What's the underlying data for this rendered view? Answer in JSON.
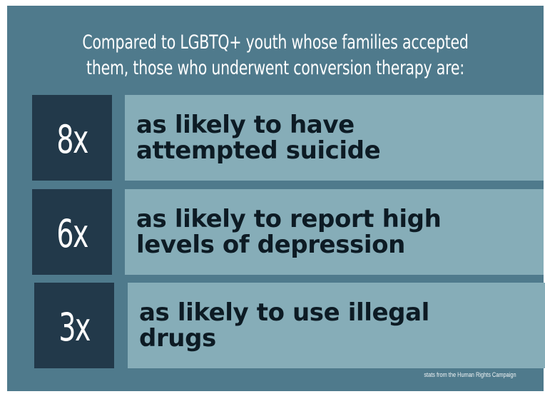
{
  "headline": {
    "line1": "Compared to LGBTQ+ youth whose families accepted",
    "line2": "them, those who underwent conversion therapy are:"
  },
  "stats": [
    {
      "multiplier": "8x",
      "text": "as likely to have\nattempted suicide"
    },
    {
      "multiplier": "6x",
      "text": "as likely to report high\nlevels of depression"
    },
    {
      "multiplier": "3x",
      "text": "as likely to use illegal\ndrugs"
    }
  ],
  "source": "stats from the Human Rights Campaign",
  "colors": {
    "background": "#4f7a8c",
    "number_box": "#22394a",
    "text_box": "#86adb8"
  }
}
